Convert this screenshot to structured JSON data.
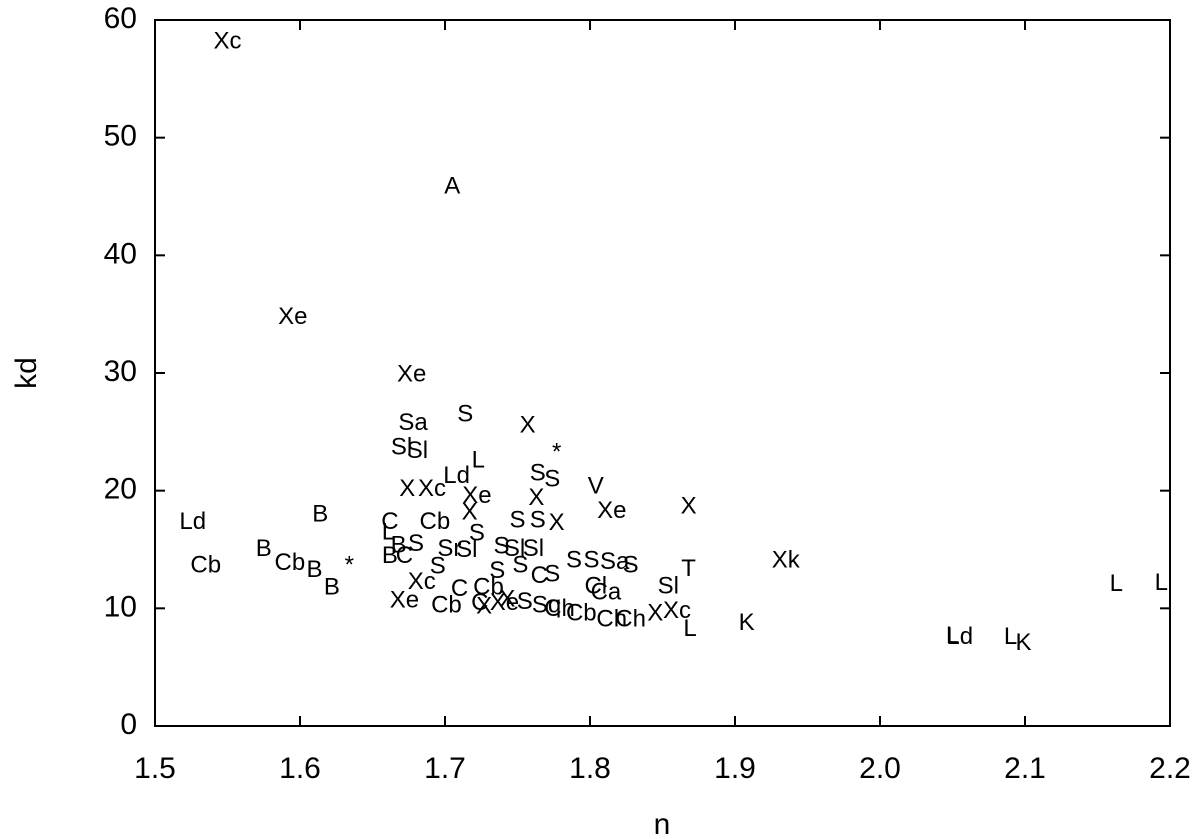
{
  "chart_data": {
    "type": "scatter",
    "xlabel": "n",
    "ylabel": "kd",
    "xlim": [
      1.5,
      2.2
    ],
    "xticks": [
      1.5,
      1.6,
      1.7,
      1.8,
      1.9,
      {
        "value": 2,
        "label": "2.0"
      },
      2.1,
      2.2
    ],
    "ylim": [
      0,
      60
    ],
    "yticks": [
      0,
      10,
      20,
      30,
      40,
      50,
      60
    ],
    "x": [
      1.55,
      1.705,
      1.595,
      1.677,
      1.678,
      1.714,
      1.757,
      1.777,
      1.681,
      1.67,
      1.723,
      1.708,
      1.764,
      1.774,
      1.804,
      1.674,
      1.691,
      1.722,
      1.763,
      1.815,
      1.868,
      1.614,
      1.526,
      1.717,
      1.662,
      1.693,
      1.75,
      1.764,
      1.777,
      1.722,
      1.661,
      1.575,
      1.535,
      1.593,
      1.61,
      1.634,
      1.622,
      1.668,
      1.68,
      1.703,
      1.715,
      1.739,
      1.761,
      1.748,
      1.662,
      1.672,
      1.695,
      1.736,
      1.752,
      1.789,
      1.801,
      1.817,
      1.828,
      1.765,
      1.774,
      1.684,
      1.868,
      1.854,
      1.935,
      1.804,
      1.811,
      2.163,
      2.194,
      1.672,
      1.701,
      1.724,
      1.727,
      1.741,
      1.755,
      1.743,
      1.77,
      1.779,
      1.794,
      1.815,
      1.73,
      1.71,
      1.828,
      1.845,
      1.86,
      1.869,
      1.908,
      2.055,
      2.09,
      2.099,
      2.05
    ],
    "values": [
      58.1,
      45.8,
      34.7,
      29.8,
      25.7,
      26.4,
      25.5,
      23.2,
      23.3,
      23.6,
      22.5,
      21.2,
      21.4,
      20.9,
      20.3,
      20.1,
      20.1,
      19.5,
      19.3,
      18.2,
      18.6,
      17.9,
      17.3,
      18.1,
      17.3,
      17.3,
      17.4,
      17.4,
      17.2,
      16.3,
      16.4,
      15.0,
      13.6,
      13.8,
      13.2,
      13.6,
      11.7,
      15.3,
      15.4,
      15.0,
      14.9,
      15.2,
      15.0,
      15.0,
      14.4,
      14.4,
      13.5,
      13.1,
      13.6,
      14.0,
      14.0,
      13.9,
      13.6,
      12.7,
      12.8,
      12.2,
      13.3,
      11.8,
      14.0,
      11.8,
      11.3,
      12.0,
      12.1,
      10.6,
      10.2,
      10.4,
      10.1,
      10.4,
      10.5,
      10.7,
      10.2,
      9.9,
      9.5,
      9.0,
      11.7,
      11.6,
      9.0,
      9.5,
      9.7,
      8.2,
      8.7,
      7.5,
      7.5,
      7.0,
      7.6
    ],
    "point_labels": [
      "Xc",
      "A",
      "Xe",
      "Xe",
      "Sa",
      "S",
      "X",
      "*",
      "Sl",
      "Sl",
      "L",
      "Ld",
      "S",
      "S",
      "V",
      "X",
      "Xc",
      "Xe",
      "X",
      "Xe",
      "X",
      "B",
      "Ld",
      "X",
      "C",
      "Cb",
      "S",
      "S",
      "X",
      "S",
      "L",
      "B",
      "Cb",
      "Cb",
      "B",
      "*",
      "B",
      "B",
      "S",
      "Sr",
      "Sl",
      "S",
      "Sl",
      "Sl",
      "B",
      "C",
      "S",
      "S",
      "S",
      "S",
      "S",
      "Sa",
      "S",
      "C",
      "S",
      "Xc",
      "T",
      "Sl",
      "Xk",
      "Cl",
      "Ca",
      "L",
      "L",
      "Xe",
      "Cb",
      "C",
      "X",
      "Xe",
      "S",
      "X",
      "Sq",
      "Ch",
      "Cb",
      "Ch",
      "Cb",
      "C",
      "Ch",
      "X",
      "Xc",
      "L",
      "K",
      "Ld",
      "L",
      "K",
      "L"
    ]
  }
}
